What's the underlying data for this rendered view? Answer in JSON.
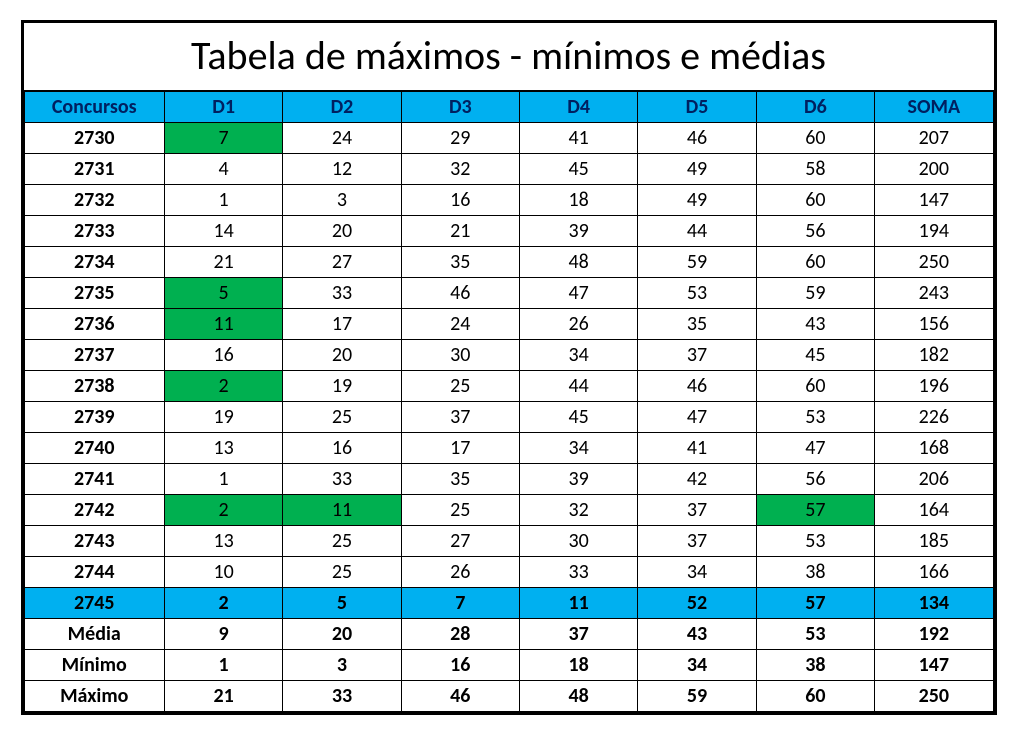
{
  "title": "Tabela de máximos - mínimos e médias",
  "columns": [
    "Concursos",
    "D1",
    "D2",
    "D3",
    "D4",
    "D5",
    "D6",
    "SOMA"
  ],
  "colors": {
    "header_bg": "#00b0f0",
    "header_fg": "#002060",
    "highlight_green": "#00b050",
    "highlight_row": "#00b0f0",
    "border": "#000000",
    "background": "#ffffff"
  },
  "font": {
    "family": "Calibri",
    "title_size_pt": 30,
    "cell_size_pt": 15
  },
  "highlighted_row_index": 15,
  "green_cells": [
    [
      0,
      1
    ],
    [
      5,
      1
    ],
    [
      6,
      1
    ],
    [
      8,
      1
    ],
    [
      12,
      1
    ],
    [
      12,
      2
    ],
    [
      12,
      6
    ]
  ],
  "rows": [
    {
      "concurso": "2730",
      "d1": "7",
      "d2": "24",
      "d3": "29",
      "d4": "41",
      "d5": "46",
      "d6": "60",
      "soma": "207"
    },
    {
      "concurso": "2731",
      "d1": "4",
      "d2": "12",
      "d3": "32",
      "d4": "45",
      "d5": "49",
      "d6": "58",
      "soma": "200"
    },
    {
      "concurso": "2732",
      "d1": "1",
      "d2": "3",
      "d3": "16",
      "d4": "18",
      "d5": "49",
      "d6": "60",
      "soma": "147"
    },
    {
      "concurso": "2733",
      "d1": "14",
      "d2": "20",
      "d3": "21",
      "d4": "39",
      "d5": "44",
      "d6": "56",
      "soma": "194"
    },
    {
      "concurso": "2734",
      "d1": "21",
      "d2": "27",
      "d3": "35",
      "d4": "48",
      "d5": "59",
      "d6": "60",
      "soma": "250"
    },
    {
      "concurso": "2735",
      "d1": "5",
      "d2": "33",
      "d3": "46",
      "d4": "47",
      "d5": "53",
      "d6": "59",
      "soma": "243"
    },
    {
      "concurso": "2736",
      "d1": "11",
      "d2": "17",
      "d3": "24",
      "d4": "26",
      "d5": "35",
      "d6": "43",
      "soma": "156"
    },
    {
      "concurso": "2737",
      "d1": "16",
      "d2": "20",
      "d3": "30",
      "d4": "34",
      "d5": "37",
      "d6": "45",
      "soma": "182"
    },
    {
      "concurso": "2738",
      "d1": "2",
      "d2": "19",
      "d3": "25",
      "d4": "44",
      "d5": "46",
      "d6": "60",
      "soma": "196"
    },
    {
      "concurso": "2739",
      "d1": "19",
      "d2": "25",
      "d3": "37",
      "d4": "45",
      "d5": "47",
      "d6": "53",
      "soma": "226"
    },
    {
      "concurso": "2740",
      "d1": "13",
      "d2": "16",
      "d3": "17",
      "d4": "34",
      "d5": "41",
      "d6": "47",
      "soma": "168"
    },
    {
      "concurso": "2741",
      "d1": "1",
      "d2": "33",
      "d3": "35",
      "d4": "39",
      "d5": "42",
      "d6": "56",
      "soma": "206"
    },
    {
      "concurso": "2742",
      "d1": "2",
      "d2": "11",
      "d3": "25",
      "d4": "32",
      "d5": "37",
      "d6": "57",
      "soma": "164"
    },
    {
      "concurso": "2743",
      "d1": "13",
      "d2": "25",
      "d3": "27",
      "d4": "30",
      "d5": "37",
      "d6": "53",
      "soma": "185"
    },
    {
      "concurso": "2744",
      "d1": "10",
      "d2": "25",
      "d3": "26",
      "d4": "33",
      "d5": "34",
      "d6": "38",
      "soma": "166"
    },
    {
      "concurso": "2745",
      "d1": "2",
      "d2": "5",
      "d3": "7",
      "d4": "11",
      "d5": "52",
      "d6": "57",
      "soma": "134"
    }
  ],
  "summary": [
    {
      "label": "Média",
      "d1": "9",
      "d2": "20",
      "d3": "28",
      "d4": "37",
      "d5": "43",
      "d6": "53",
      "soma": "192"
    },
    {
      "label": "Mínimo",
      "d1": "1",
      "d2": "3",
      "d3": "16",
      "d4": "18",
      "d5": "34",
      "d6": "38",
      "soma": "147"
    },
    {
      "label": "Máximo",
      "d1": "21",
      "d2": "33",
      "d3": "46",
      "d4": "48",
      "d5": "59",
      "d6": "60",
      "soma": "250"
    }
  ]
}
